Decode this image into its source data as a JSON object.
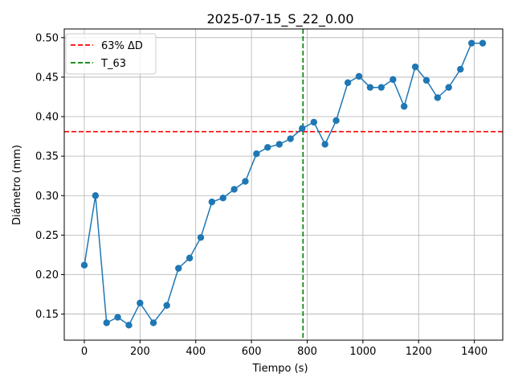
{
  "chart_data": {
    "type": "line",
    "title": "2025-07-15_S_22_0.00",
    "xlabel": "Tiempo (s)",
    "ylabel": "Diámetro (mm)",
    "xlim": [
      -72,
      1502
    ],
    "ylim": [
      0.117,
      0.511
    ],
    "grid": true,
    "legend_position": "upper-left",
    "xticks": [
      0,
      200,
      400,
      600,
      800,
      1000,
      1200,
      1400
    ],
    "yticks": [
      0.15,
      0.2,
      0.25,
      0.3,
      0.35,
      0.4,
      0.45,
      0.5
    ],
    "series": [
      {
        "color": "#1f77b4",
        "x": [
          0,
          40,
          80,
          120,
          160,
          200,
          248,
          296,
          338,
          378,
          418,
          458,
          498,
          538,
          578,
          618,
          658,
          700,
          740,
          782,
          824,
          864,
          904,
          946,
          986,
          1026,
          1066,
          1108,
          1148,
          1188,
          1228,
          1268,
          1308,
          1350,
          1390,
          1430
        ],
        "y": [
          0.212,
          0.3,
          0.139,
          0.146,
          0.136,
          0.164,
          0.139,
          0.161,
          0.208,
          0.221,
          0.247,
          0.292,
          0.297,
          0.308,
          0.318,
          0.353,
          0.361,
          0.365,
          0.372,
          0.385,
          0.393,
          0.365,
          0.395,
          0.443,
          0.451,
          0.437,
          0.437,
          0.447,
          0.413,
          0.463,
          0.446,
          0.424,
          0.437,
          0.46,
          0.493,
          0.493
        ]
      }
    ],
    "reference_lines": [
      {
        "name": "63% ΔD",
        "orientation": "horizontal",
        "value": 0.381,
        "color": "#ff0000",
        "style": "dashed"
      },
      {
        "name": "T_63",
        "orientation": "vertical",
        "value": 785,
        "color": "#008000",
        "style": "dashed"
      }
    ]
  }
}
